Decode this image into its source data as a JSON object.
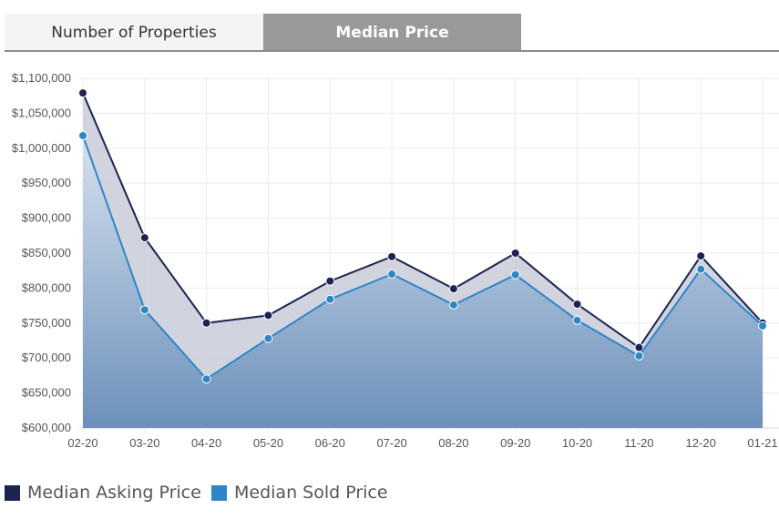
{
  "tabs": [
    {
      "label": "Number of Properties",
      "active": false
    },
    {
      "label": "Median Price",
      "active": true
    }
  ],
  "chart_data": {
    "type": "area",
    "categories": [
      "02-20",
      "03-20",
      "04-20",
      "05-20",
      "06-20",
      "07-20",
      "08-20",
      "09-20",
      "10-20",
      "11-20",
      "12-20",
      "01-21"
    ],
    "ylim": [
      600000,
      1100000
    ],
    "yticks": [
      "$600,000",
      "$650,000",
      "$700,000",
      "$750,000",
      "$800,000",
      "$850,000",
      "$900,000",
      "$950,000",
      "$1,000,000",
      "$1,050,000",
      "$1,100,000"
    ],
    "ytick_values": [
      600000,
      650000,
      700000,
      750000,
      800000,
      850000,
      900000,
      950000,
      1000000,
      1050000,
      1100000
    ],
    "grid": true,
    "legend": "bottom-left",
    "series": [
      {
        "name": "Median Asking Price",
        "color": "#1b2350",
        "values": [
          1079000,
          872000,
          750000,
          761000,
          810000,
          845000,
          799000,
          850000,
          777000,
          715000,
          846000,
          750000
        ]
      },
      {
        "name": "Median Sold Price",
        "color": "#2e86c8",
        "values": [
          1018000,
          769000,
          670000,
          728000,
          784000,
          820000,
          776000,
          819000,
          754000,
          703000,
          827000,
          746000
        ]
      }
    ]
  }
}
